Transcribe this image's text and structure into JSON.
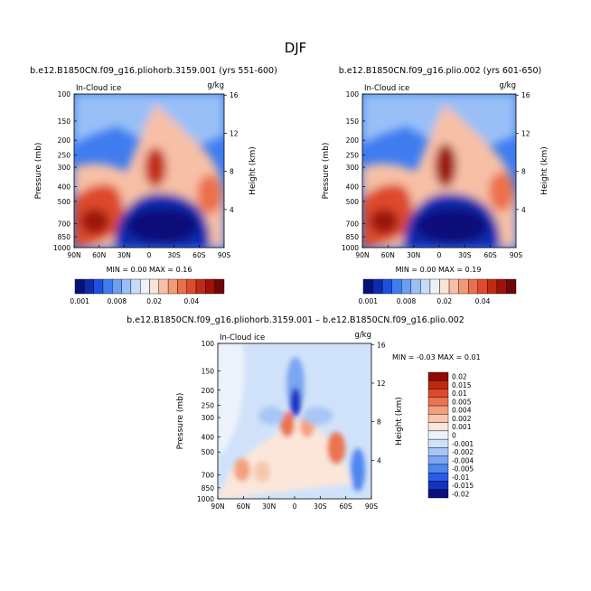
{
  "figure": {
    "title": "DJF"
  },
  "palette": {
    "seq": [
      "#08107a",
      "#0c2bb0",
      "#1f4fe0",
      "#3f7cf0",
      "#6a9ff3",
      "#98bff6",
      "#c7dcf9",
      "#ecf2fb",
      "#fbe3d6",
      "#f7c0a6",
      "#f29a78",
      "#ec6f4c",
      "#dd4a2c",
      "#c22a17",
      "#9e1209",
      "#6e0606"
    ],
    "diverging": [
      "#08107a",
      "#1233c2",
      "#2a5ce6",
      "#4f86ef",
      "#7aa6f2",
      "#a7c6f6",
      "#d0e2fa",
      "#eef3fb",
      "#fbe7da",
      "#f8c6ae",
      "#f3a07d",
      "#ec7350",
      "#dc4a2c",
      "#bf2914",
      "#8e0c05"
    ]
  },
  "chart_data": [
    {
      "type": "heatmap",
      "id": "panel_a",
      "title": "b.e12.B1850CN.f09_g16.pliohorb.3159.001 (yrs 551-600)",
      "variable_label": "In-Cloud ice",
      "units": "g/kg",
      "xlabel": "",
      "ylabel": "Pressure (mb)",
      "ylabel_right": "Height (km)",
      "x_ticks": [
        "90N",
        "60N",
        "30N",
        "0",
        "30S",
        "60S",
        "90S"
      ],
      "x_range": [
        90,
        -90
      ],
      "y_ticks": [
        "100",
        "150",
        "200",
        "250",
        "300",
        "400",
        "500",
        "700",
        "850",
        "1000"
      ],
      "y_range": [
        100,
        1000
      ],
      "y2_ticks": [
        "16",
        "12",
        "8",
        "4"
      ],
      "stats": "MIN =   0.00   MAX =   0.16",
      "colorbar_labels": [
        "0.001",
        "0.008",
        "0.02",
        "0.04"
      ]
    },
    {
      "type": "heatmap",
      "id": "panel_b",
      "title": "b.e12.B1850CN.f09_g16.plio.002 (yrs 601-650)",
      "variable_label": "In-Cloud ice",
      "units": "g/kg",
      "xlabel": "",
      "ylabel": "Pressure (mb)",
      "ylabel_right": "Height (km)",
      "x_ticks": [
        "90N",
        "60N",
        "30N",
        "0",
        "30S",
        "60S",
        "90S"
      ],
      "x_range": [
        90,
        -90
      ],
      "y_ticks": [
        "100",
        "150",
        "200",
        "250",
        "300",
        "400",
        "500",
        "700",
        "850",
        "1000"
      ],
      "y_range": [
        100,
        1000
      ],
      "y2_ticks": [
        "16",
        "12",
        "8",
        "4"
      ],
      "stats": "MIN =   0.00   MAX =   0.19",
      "colorbar_labels": [
        "0.001",
        "0.008",
        "0.02",
        "0.04"
      ]
    },
    {
      "type": "heatmap",
      "id": "panel_diff",
      "title": "b.e12.B1850CN.f09_g16.pliohorb.3159.001 – b.e12.B1850CN.f09_g16.plio.002",
      "variable_label": "In-Cloud ice",
      "units": "g/kg",
      "xlabel": "",
      "ylabel": "Pressure (mb)",
      "ylabel_right": "Height (km)",
      "x_ticks": [
        "90N",
        "60N",
        "30N",
        "0",
        "30S",
        "60S",
        "90S"
      ],
      "x_range": [
        90,
        -90
      ],
      "y_ticks": [
        "100",
        "150",
        "200",
        "250",
        "300",
        "400",
        "500",
        "700",
        "850",
        "1000"
      ],
      "y_range": [
        100,
        1000
      ],
      "y2_ticks": [
        "16",
        "12",
        "8",
        "4"
      ],
      "stats": "MIN =   -0.03    MAX =    0.01",
      "colorbar_labels": [
        "0.02",
        "0.015",
        "0.01",
        "0.005",
        "0.004",
        "0.002",
        "0.001",
        "0",
        "-0.001",
        "-0.002",
        "-0.004",
        "-0.005",
        "-0.01",
        "-0.015",
        "-0.02"
      ]
    }
  ]
}
